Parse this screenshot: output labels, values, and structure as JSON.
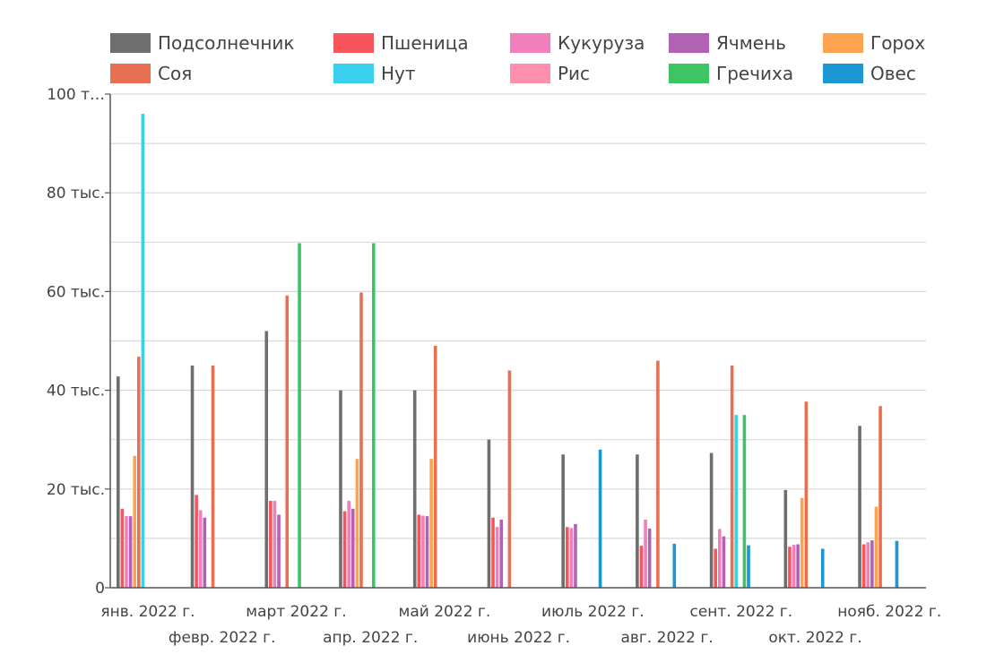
{
  "chart_data": {
    "type": "bar",
    "categories": [
      "янв. 2022 г.",
      "февр. 2022 г.",
      "март 2022 г.",
      "апр. 2022 г.",
      "май 2022 г.",
      "июнь 2022 г.",
      "июль 2022 г.",
      "авг. 2022 г.",
      "сент. 2022 г.",
      "окт. 2022 г.",
      "нояб. 2022 г."
    ],
    "series": [
      {
        "name": "Подсолнечник",
        "color": "#6e6e6e",
        "values": [
          42800,
          45000,
          52000,
          40000,
          40000,
          30000,
          27000,
          27000,
          27300,
          19800,
          32800
        ]
      },
      {
        "name": "Пшеница",
        "color": "#f7555e",
        "values": [
          16000,
          18800,
          17600,
          15500,
          14800,
          14200,
          12300,
          8500,
          7900,
          8300,
          8800
        ]
      },
      {
        "name": "Кукуруза",
        "color": "#f07fbc",
        "values": [
          14500,
          15700,
          17600,
          17600,
          14600,
          12300,
          12100,
          13800,
          11900,
          8700,
          9200
        ]
      },
      {
        "name": "Ячмень",
        "color": "#b262b4",
        "values": [
          14500,
          14200,
          14800,
          16000,
          14500,
          13800,
          12900,
          12000,
          10400,
          8800,
          9600
        ]
      },
      {
        "name": "Горох",
        "color": "#fda24f",
        "values": [
          26700,
          null,
          null,
          26100,
          26100,
          null,
          null,
          null,
          null,
          18200,
          16400
        ]
      },
      {
        "name": "Соя",
        "color": "#e86f52",
        "values": [
          46800,
          45000,
          59200,
          59800,
          49000,
          44000,
          null,
          46000,
          45000,
          37700,
          36800
        ]
      },
      {
        "name": "Нут",
        "color": "#39d0ee",
        "values": [
          96000,
          null,
          null,
          null,
          null,
          null,
          null,
          null,
          35000,
          null,
          null
        ]
      },
      {
        "name": "Рис",
        "color": "#ff8fad",
        "values": [
          null,
          null,
          null,
          null,
          null,
          null,
          null,
          null,
          null,
          null,
          null
        ]
      },
      {
        "name": "Гречиха",
        "color": "#3ec365",
        "values": [
          null,
          null,
          69800,
          69800,
          null,
          null,
          null,
          null,
          35000,
          null,
          null
        ]
      },
      {
        "name": "Овес",
        "color": "#1b97d4",
        "values": [
          null,
          null,
          null,
          null,
          null,
          null,
          28000,
          8900,
          8600,
          7900,
          9500
        ]
      }
    ],
    "y_ticks": [
      "0",
      "20 тыс.",
      "40 тыс.",
      "60 тыс.",
      "80 тыс.",
      "100 т…"
    ],
    "ylim": [
      0,
      100000
    ],
    "grid": true,
    "legend_position": "top"
  }
}
